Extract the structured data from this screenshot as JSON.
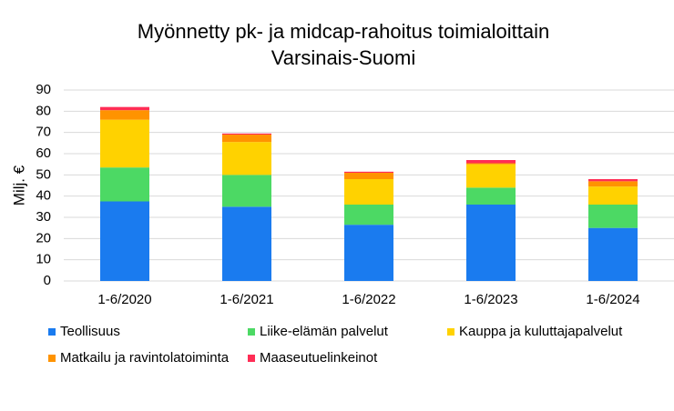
{
  "chart_data": {
    "type": "stacked_bar",
    "title": "Myönnetty pk- ja midcap-rahoitus toimialoittain",
    "subtitle": "Varsinais-Suomi",
    "ylabel": "Milj. €",
    "categories": [
      "1-6/2020",
      "1-6/2021",
      "1-6/2022",
      "1-6/2023",
      "1-6/2024"
    ],
    "series": [
      {
        "name": "Teollisuus",
        "color": "#1a7bef",
        "values": [
          37.5,
          35,
          26.5,
          36,
          25
        ]
      },
      {
        "name": "Liike-elämän palvelut",
        "color": "#4cd964",
        "values": [
          16,
          15,
          9.5,
          8,
          11
        ]
      },
      {
        "name": "Kauppa ja kuluttajapalvelut",
        "color": "#ffd200",
        "values": [
          22.5,
          15.5,
          12,
          11,
          8.5
        ]
      },
      {
        "name": "Matkailu ja ravintolatoiminta",
        "color": "#ff9300",
        "values": [
          4.5,
          3.5,
          3,
          0.5,
          2.5
        ]
      },
      {
        "name": "Maaseutuelinkeinot",
        "color": "#ff2d55",
        "values": [
          1.5,
          0.5,
          0.5,
          1.5,
          1
        ]
      }
    ],
    "ylim": [
      0,
      90
    ],
    "yticks": [
      0,
      10,
      20,
      30,
      40,
      50,
      60,
      70,
      80,
      90
    ],
    "grid": true,
    "legend": "bottom"
  }
}
